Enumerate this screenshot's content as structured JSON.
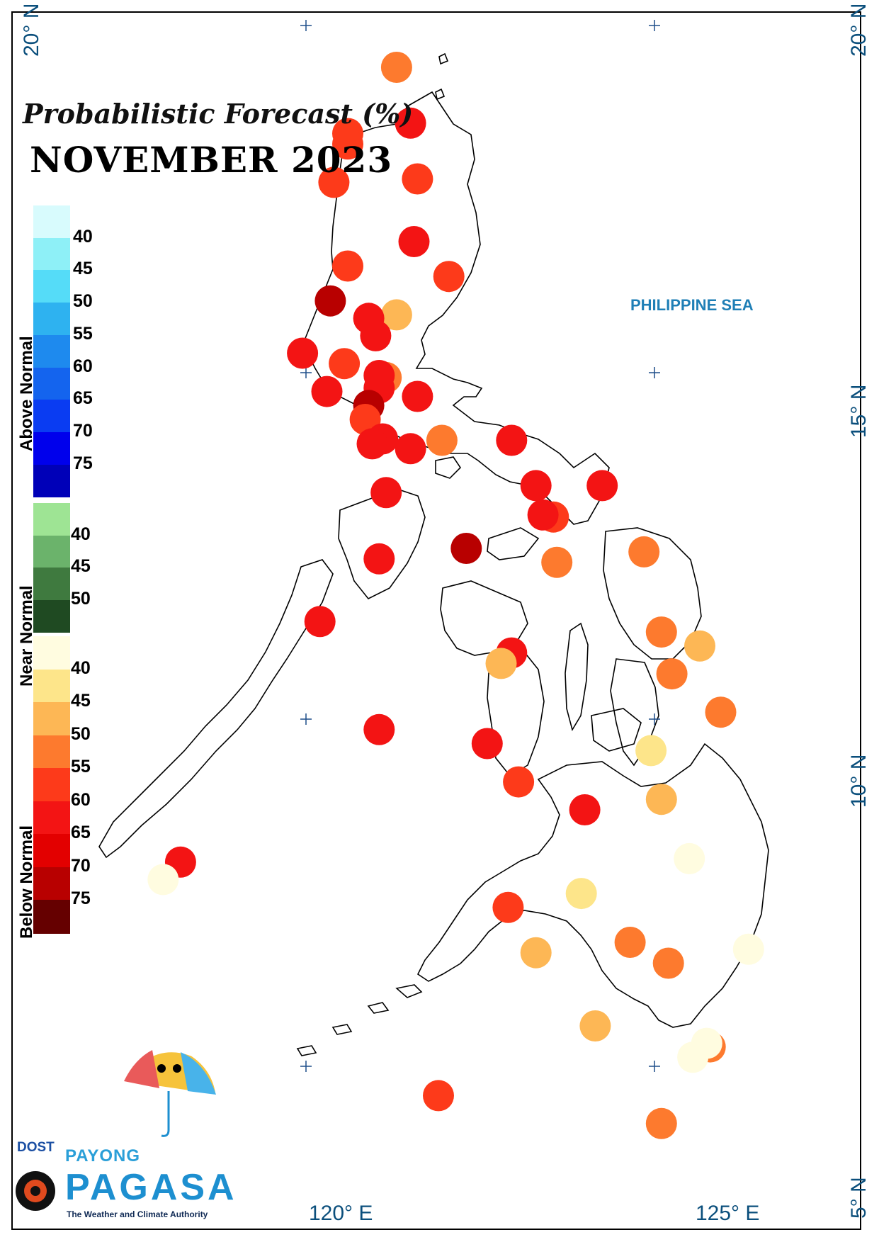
{
  "title": {
    "line1": "Probabilistic Forecast (%)",
    "line2": "NOVEMBER 2023"
  },
  "sea_label": "PHILIPPINE SEA",
  "coords": {
    "lat_20_left": "20° N",
    "lat_20_right": "20° N",
    "lat_15": "15° N",
    "lat_10": "10° N",
    "lat_5": "5° N",
    "lon_120": "120° E",
    "lon_125": "125° E"
  },
  "legend": {
    "above": {
      "title": "Above Normal",
      "ticks": [
        "40",
        "45",
        "50",
        "55",
        "60",
        "65",
        "70",
        "75"
      ],
      "colors": [
        "#d8fbfd",
        "#8ef0f7",
        "#55dcf8",
        "#2eb2f0",
        "#1e8aee",
        "#1464ee",
        "#0a3cf2",
        "#0000ec",
        "#0000b8"
      ]
    },
    "near": {
      "title": "Near Normal",
      "ticks": [
        "40",
        "45",
        "50"
      ],
      "colors": [
        "#9ee494",
        "#6bb36b",
        "#3f7a3f",
        "#1f4a22"
      ]
    },
    "below": {
      "title": "Below Normal",
      "ticks": [
        "40",
        "45",
        "50",
        "55",
        "60",
        "65",
        "70",
        "75"
      ],
      "colors": [
        "#fffce0",
        "#fde58a",
        "#fdb755",
        "#fd7a2e",
        "#fd3a1a",
        "#f31414",
        "#e30000",
        "#b80000",
        "#650000"
      ]
    }
  },
  "logo": {
    "dost": "DOST",
    "payong": "PAYONG",
    "pagasa": "PAGASA",
    "tagline": "The Weather and Climate Authority"
  },
  "stations": [
    {
      "lon": 121.3,
      "lat": 19.4,
      "category": "below",
      "prob": 55,
      "color": "#fd7a2e"
    },
    {
      "lon": 121.5,
      "lat": 18.6,
      "category": "below",
      "prob": 65,
      "color": "#f31414"
    },
    {
      "lon": 120.6,
      "lat": 18.45,
      "category": "below",
      "prob": 60,
      "color": "#fd3a1a"
    },
    {
      "lon": 120.6,
      "lat": 18.3,
      "category": "below",
      "prob": 60,
      "color": "#fd3a1a"
    },
    {
      "lon": 120.4,
      "lat": 17.75,
      "category": "below",
      "prob": 60,
      "color": "#fd3a1a"
    },
    {
      "lon": 121.6,
      "lat": 17.8,
      "category": "below",
      "prob": 60,
      "color": "#fd3a1a"
    },
    {
      "lon": 121.55,
      "lat": 16.9,
      "category": "below",
      "prob": 65,
      "color": "#f31414"
    },
    {
      "lon": 120.6,
      "lat": 16.55,
      "category": "below",
      "prob": 60,
      "color": "#fd3a1a"
    },
    {
      "lon": 122.05,
      "lat": 16.4,
      "category": "below",
      "prob": 60,
      "color": "#fd3a1a"
    },
    {
      "lon": 120.35,
      "lat": 16.05,
      "category": "below",
      "prob": 75,
      "color": "#b80000"
    },
    {
      "lon": 121.3,
      "lat": 15.85,
      "category": "below",
      "prob": 50,
      "color": "#fdb755"
    },
    {
      "lon": 120.9,
      "lat": 15.8,
      "category": "below",
      "prob": 65,
      "color": "#f31414"
    },
    {
      "lon": 121.0,
      "lat": 15.55,
      "category": "below",
      "prob": 65,
      "color": "#f31414"
    },
    {
      "lon": 119.95,
      "lat": 15.3,
      "category": "below",
      "prob": 65,
      "color": "#f31414"
    },
    {
      "lon": 120.55,
      "lat": 15.15,
      "category": "below",
      "prob": 60,
      "color": "#fd3a1a"
    },
    {
      "lon": 121.15,
      "lat": 14.95,
      "category": "below",
      "prob": 55,
      "color": "#fd7a2e"
    },
    {
      "lon": 121.05,
      "lat": 14.98,
      "category": "below",
      "prob": 65,
      "color": "#f31414"
    },
    {
      "lon": 121.05,
      "lat": 14.8,
      "category": "below",
      "prob": 65,
      "color": "#f31414"
    },
    {
      "lon": 120.3,
      "lat": 14.75,
      "category": "below",
      "prob": 65,
      "color": "#f31414"
    },
    {
      "lon": 121.6,
      "lat": 14.68,
      "category": "below",
      "prob": 65,
      "color": "#f31414"
    },
    {
      "lon": 120.9,
      "lat": 14.55,
      "category": "below",
      "prob": 75,
      "color": "#b80000"
    },
    {
      "lon": 120.85,
      "lat": 14.35,
      "category": "below",
      "prob": 60,
      "color": "#fd3a1a"
    },
    {
      "lon": 121.1,
      "lat": 14.07,
      "category": "below",
      "prob": 65,
      "color": "#f31414"
    },
    {
      "lon": 120.95,
      "lat": 14.0,
      "category": "below",
      "prob": 65,
      "color": "#f31414"
    },
    {
      "lon": 121.5,
      "lat": 13.93,
      "category": "below",
      "prob": 65,
      "color": "#f31414"
    },
    {
      "lon": 121.95,
      "lat": 14.05,
      "category": "below",
      "prob": 55,
      "color": "#fd7a2e"
    },
    {
      "lon": 122.95,
      "lat": 14.05,
      "category": "below",
      "prob": 65,
      "color": "#f31414"
    },
    {
      "lon": 123.3,
      "lat": 13.4,
      "category": "below",
      "prob": 65,
      "color": "#f31414"
    },
    {
      "lon": 124.25,
      "lat": 13.4,
      "category": "below",
      "prob": 65,
      "color": "#f31414"
    },
    {
      "lon": 123.55,
      "lat": 12.95,
      "category": "below",
      "prob": 60,
      "color": "#fd3a1a"
    },
    {
      "lon": 123.4,
      "lat": 12.98,
      "category": "below",
      "prob": 65,
      "color": "#f31414"
    },
    {
      "lon": 121.15,
      "lat": 13.3,
      "category": "below",
      "prob": 65,
      "color": "#f31414"
    },
    {
      "lon": 121.05,
      "lat": 12.35,
      "category": "below",
      "prob": 65,
      "color": "#f31414"
    },
    {
      "lon": 122.3,
      "lat": 12.5,
      "category": "below",
      "prob": 75,
      "color": "#b80000"
    },
    {
      "lon": 123.6,
      "lat": 12.3,
      "category": "below",
      "prob": 55,
      "color": "#fd7a2e"
    },
    {
      "lon": 124.85,
      "lat": 12.45,
      "category": "below",
      "prob": 55,
      "color": "#fd7a2e"
    },
    {
      "lon": 120.2,
      "lat": 11.45,
      "category": "below",
      "prob": 65,
      "color": "#f31414"
    },
    {
      "lon": 125.1,
      "lat": 11.3,
      "category": "below",
      "prob": 55,
      "color": "#fd7a2e"
    },
    {
      "lon": 125.65,
      "lat": 11.1,
      "category": "below",
      "prob": 50,
      "color": "#fdb755"
    },
    {
      "lon": 122.95,
      "lat": 11.0,
      "category": "below",
      "prob": 65,
      "color": "#f31414"
    },
    {
      "lon": 122.8,
      "lat": 10.85,
      "category": "below",
      "prob": 50,
      "color": "#fdb755"
    },
    {
      "lon": 125.25,
      "lat": 10.7,
      "category": "below",
      "prob": 55,
      "color": "#fd7a2e"
    },
    {
      "lon": 125.95,
      "lat": 10.15,
      "category": "below",
      "prob": 55,
      "color": "#fd7a2e"
    },
    {
      "lon": 121.05,
      "lat": 9.9,
      "category": "below",
      "prob": 65,
      "color": "#f31414"
    },
    {
      "lon": 122.6,
      "lat": 9.7,
      "category": "below",
      "prob": 65,
      "color": "#f31414"
    },
    {
      "lon": 124.95,
      "lat": 9.6,
      "category": "below",
      "prob": 40,
      "color": "#fde58a"
    },
    {
      "lon": 123.05,
      "lat": 9.15,
      "category": "below",
      "prob": 60,
      "color": "#fd3a1a"
    },
    {
      "lon": 124.0,
      "lat": 8.75,
      "category": "below",
      "prob": 65,
      "color": "#f31414"
    },
    {
      "lon": 125.1,
      "lat": 8.9,
      "category": "below",
      "prob": 50,
      "color": "#fdb755"
    },
    {
      "lon": 125.5,
      "lat": 8.05,
      "category": "below",
      "prob": 40,
      "color": "#fffce0"
    },
    {
      "lon": 118.2,
      "lat": 8.0,
      "category": "below",
      "prob": 65,
      "color": "#f31414"
    },
    {
      "lon": 117.95,
      "lat": 7.75,
      "category": "below",
      "prob": 40,
      "color": "#fffce0"
    },
    {
      "lon": 123.95,
      "lat": 7.55,
      "category": "below",
      "prob": 50,
      "color": "#fde58a"
    },
    {
      "lon": 122.9,
      "lat": 7.35,
      "category": "below",
      "prob": 60,
      "color": "#fd3a1a"
    },
    {
      "lon": 123.3,
      "lat": 6.7,
      "category": "below",
      "prob": 50,
      "color": "#fdb755"
    },
    {
      "lon": 124.65,
      "lat": 6.85,
      "category": "below",
      "prob": 55,
      "color": "#fd7a2e"
    },
    {
      "lon": 125.2,
      "lat": 6.55,
      "category": "below",
      "prob": 55,
      "color": "#fd7a2e"
    },
    {
      "lon": 126.35,
      "lat": 6.75,
      "category": "below",
      "prob": 40,
      "color": "#fffce0"
    },
    {
      "lon": 124.15,
      "lat": 5.65,
      "category": "below",
      "prob": 50,
      "color": "#fdb755"
    },
    {
      "lon": 125.8,
      "lat": 5.35,
      "category": "below",
      "prob": 55,
      "color": "#fd7a2e"
    },
    {
      "lon": 125.75,
      "lat": 5.4,
      "category": "below",
      "prob": 40,
      "color": "#fffce0"
    },
    {
      "lon": 125.55,
      "lat": 5.2,
      "category": "below",
      "prob": 40,
      "color": "#fffce0"
    },
    {
      "lon": 121.9,
      "lat": 4.65,
      "category": "below",
      "prob": 60,
      "color": "#fd3a1a"
    },
    {
      "lon": 125.1,
      "lat": 4.25,
      "category": "below",
      "prob": 55,
      "color": "#fd7a2e"
    }
  ]
}
